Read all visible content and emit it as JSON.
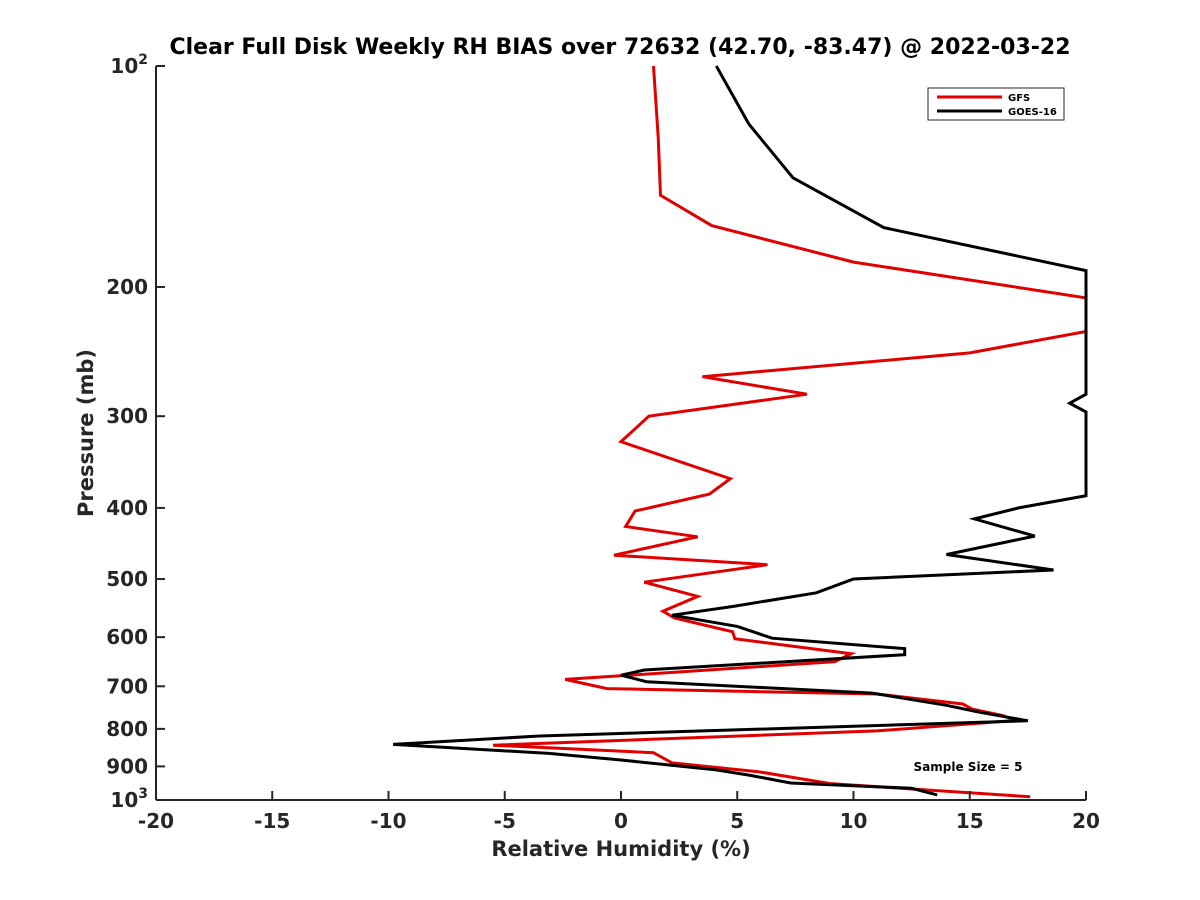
{
  "chart_data": {
    "type": "line",
    "title": "Clear Full Disk Weekly RH BIAS over 72632 (42.70, -83.47) @ 2022-03-22",
    "xlabel": "Relative Humidity (%)",
    "ylabel": "Pressure (mb)",
    "xlim": [
      -20,
      20
    ],
    "ylim": [
      100,
      1000
    ],
    "y_scale": "log",
    "y_reversed": true,
    "x_ticks": [
      -20,
      -15,
      -10,
      -5,
      0,
      5,
      10,
      15,
      20
    ],
    "x_tick_labels": [
      "-20",
      "-15",
      "-10",
      "-5",
      "0",
      "5",
      "10",
      "15",
      "20"
    ],
    "y_ticks": [
      100,
      200,
      300,
      400,
      500,
      600,
      700,
      800,
      900,
      1000
    ],
    "y_tick_labels": [
      {
        "base": "10",
        "exp": "2"
      },
      {
        "base": "200",
        "exp": ""
      },
      {
        "base": "300",
        "exp": ""
      },
      {
        "base": "400",
        "exp": ""
      },
      {
        "base": "500",
        "exp": ""
      },
      {
        "base": "600",
        "exp": ""
      },
      {
        "base": "700",
        "exp": ""
      },
      {
        "base": "800",
        "exp": ""
      },
      {
        "base": "900",
        "exp": ""
      },
      {
        "base": "10",
        "exp": "3"
      }
    ],
    "grid": false,
    "legend_position": "top-right",
    "series": [
      {
        "name": "GFS",
        "color": "#e00000",
        "points": [
          [
            1.4,
            100
          ],
          [
            1.6,
            125
          ],
          [
            1.7,
            150
          ],
          [
            3.9,
            165
          ],
          [
            10.0,
            185
          ],
          [
            20.0,
            207
          ],
          [
            20.0,
            230
          ],
          [
            15.0,
            246
          ],
          [
            3.5,
            265
          ],
          [
            8.0,
            280
          ],
          [
            1.2,
            300
          ],
          [
            0.0,
            325
          ],
          [
            4.7,
            365
          ],
          [
            3.8,
            383
          ],
          [
            0.6,
            404
          ],
          [
            0.2,
            424
          ],
          [
            3.3,
            438
          ],
          [
            -0.3,
            464
          ],
          [
            6.3,
            478
          ],
          [
            1.0,
            505
          ],
          [
            3.3,
            528
          ],
          [
            1.8,
            553
          ],
          [
            2.3,
            565
          ],
          [
            4.8,
            590
          ],
          [
            4.9,
            603
          ],
          [
            9.9,
            632
          ],
          [
            9.2,
            648
          ],
          [
            -2.4,
            685
          ],
          [
            -0.6,
            705
          ],
          [
            11.0,
            717
          ],
          [
            14.7,
            740
          ],
          [
            15.1,
            752
          ],
          [
            16.4,
            767
          ],
          [
            17.0,
            779
          ],
          [
            11.0,
            805
          ],
          [
            -5.5,
            842
          ],
          [
            1.4,
            862
          ],
          [
            2.2,
            890
          ],
          [
            5.9,
            915
          ],
          [
            9.0,
            950
          ],
          [
            17.6,
            990
          ]
        ]
      },
      {
        "name": "GOES-16",
        "color": "#000000",
        "points": [
          [
            4.1,
            100
          ],
          [
            5.5,
            120
          ],
          [
            7.4,
            142
          ],
          [
            11.3,
            166
          ],
          [
            20.0,
            190
          ],
          [
            20.0,
            280
          ],
          [
            19.3,
            288
          ],
          [
            20.0,
            296
          ],
          [
            20.0,
            385
          ],
          [
            17.1,
            400
          ],
          [
            15.2,
            414
          ],
          [
            17.8,
            437
          ],
          [
            14.0,
            463
          ],
          [
            18.6,
            486
          ],
          [
            10.0,
            500
          ],
          [
            8.4,
            522
          ],
          [
            4.8,
            545
          ],
          [
            2.2,
            560
          ],
          [
            5.0,
            580
          ],
          [
            6.5,
            602
          ],
          [
            12.2,
            622
          ],
          [
            12.2,
            634
          ],
          [
            1.0,
            665
          ],
          [
            0.0,
            676
          ],
          [
            1.1,
            690
          ],
          [
            10.8,
            715
          ],
          [
            14.0,
            743
          ],
          [
            15.3,
            758
          ],
          [
            17.5,
            780
          ],
          [
            -3.5,
            818
          ],
          [
            -9.8,
            840
          ],
          [
            -3.1,
            864
          ],
          [
            0.0,
            882
          ],
          [
            4.1,
            910
          ],
          [
            5.5,
            925
          ],
          [
            7.3,
            948
          ],
          [
            12.5,
            964
          ],
          [
            13.6,
            984
          ]
        ]
      }
    ],
    "annotations": [
      "Sample Size = 5"
    ]
  }
}
